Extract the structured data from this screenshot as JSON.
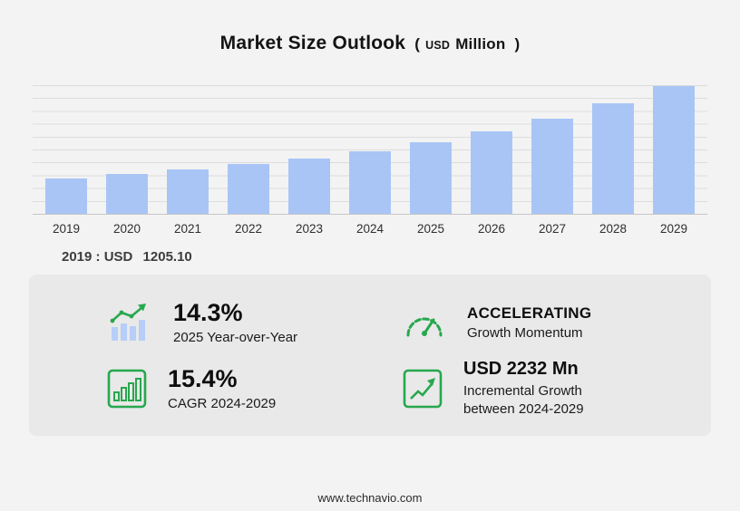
{
  "title": {
    "main": "Market Size Outlook",
    "open": "(",
    "currency": "USD",
    "unit": "Million",
    "close": ")"
  },
  "chart_data": {
    "type": "bar",
    "categories": [
      "2019",
      "2020",
      "2021",
      "2022",
      "2023",
      "2024",
      "2025",
      "2026",
      "2027",
      "2028",
      "2029"
    ],
    "values": [
      1205.1,
      1351,
      1514,
      1697,
      1903,
      2133,
      2438,
      2821,
      3264,
      3777,
      4365
    ],
    "title": "Market Size Outlook (USD Million)",
    "xlabel": "",
    "ylabel": "",
    "ylim": [
      0,
      4500
    ],
    "grid": true,
    "legend": "none",
    "bar_color": "#a8c5f6"
  },
  "annotation": {
    "label": "2019 : USD",
    "value": "1205.10"
  },
  "stats": [
    {
      "icon": "bar-chart-growth-icon",
      "value": "14.3%",
      "label": "2025 Year-over-Year"
    },
    {
      "icon": "speedometer-icon",
      "value": "ACCELERATING",
      "label": "Growth Momentum"
    },
    {
      "icon": "bar-chart-box-icon",
      "value": "15.4%",
      "label": "CAGR 2024-2029"
    },
    {
      "icon": "trend-arrow-box-icon",
      "value": "USD 2232 Mn",
      "label": "Incremental Growth between 2024-2029"
    }
  ],
  "footer": {
    "url": "www.technavio.com"
  },
  "colors": {
    "accent_green": "#27a84e",
    "bar_blue": "#a8c5f6",
    "background": "#f3f3f3",
    "panel": "#e9e9e9"
  }
}
